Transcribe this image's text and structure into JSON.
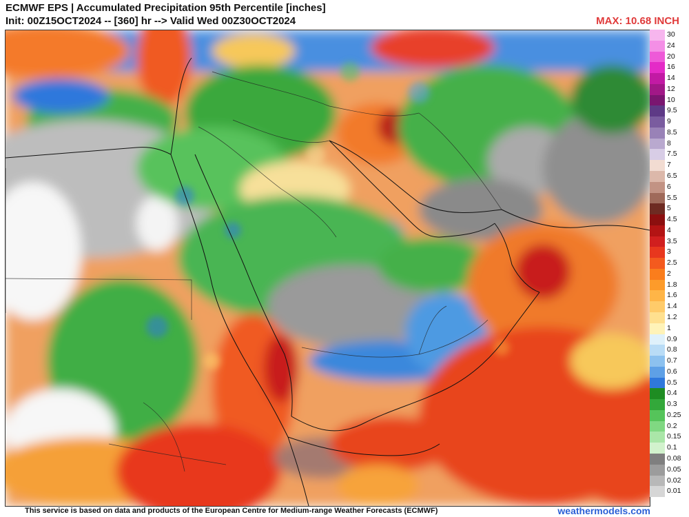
{
  "header": {
    "title_line1": "ECMWF EPS | Accumulated Precipitation 95th Percentile [inches]",
    "title_line2": "Init: 00Z15OCT2024 -- [360] hr --> Valid Wed 00Z30OCT2024",
    "max_label": "MAX: 10.68 INCH"
  },
  "footer": {
    "credit": "This service is based on data and products of the European Centre for Medium-range Weather Forecasts (ECMWF)",
    "brand": "weathermodels.com"
  },
  "legend": [
    {
      "label": "30",
      "color": "#f7b6ee"
    },
    {
      "label": "24",
      "color": "#f48fe6"
    },
    {
      "label": "20",
      "color": "#ee5ad8"
    },
    {
      "label": "16",
      "color": "#e42bc7"
    },
    {
      "label": "14",
      "color": "#c21aa4"
    },
    {
      "label": "12",
      "color": "#a11887"
    },
    {
      "label": "10",
      "color": "#7a1670"
    },
    {
      "label": "9.5",
      "color": "#5e3a86"
    },
    {
      "label": "9",
      "color": "#7a5c9f"
    },
    {
      "label": "8.5",
      "color": "#9982b7"
    },
    {
      "label": "8",
      "color": "#b9a9cf"
    },
    {
      "label": "7.5",
      "color": "#d8cde6"
    },
    {
      "label": "7",
      "color": "#f2dcd2"
    },
    {
      "label": "6.5",
      "color": "#dcb8aa"
    },
    {
      "label": "6",
      "color": "#c29384"
    },
    {
      "label": "5.5",
      "color": "#9f6a5a"
    },
    {
      "label": "5",
      "color": "#6e2b22"
    },
    {
      "label": "4.5",
      "color": "#8c0f0f"
    },
    {
      "label": "4",
      "color": "#b31414"
    },
    {
      "label": "3.5",
      "color": "#d11f1f"
    },
    {
      "label": "3",
      "color": "#e8371e"
    },
    {
      "label": "2.5",
      "color": "#f45a1e"
    },
    {
      "label": "2",
      "color": "#fa7d1c"
    },
    {
      "label": "1.8",
      "color": "#fd9b2a"
    },
    {
      "label": "1.6",
      "color": "#ffb547"
    },
    {
      "label": "1.4",
      "color": "#ffcb6a"
    },
    {
      "label": "1.2",
      "color": "#ffe08f"
    },
    {
      "label": "1",
      "color": "#fff3b8"
    },
    {
      "label": "0.9",
      "color": "#dff1fb"
    },
    {
      "label": "0.8",
      "color": "#b9dcf6"
    },
    {
      "label": "0.7",
      "color": "#8cc1ef"
    },
    {
      "label": "0.6",
      "color": "#5ea0e6"
    },
    {
      "label": "0.5",
      "color": "#2f78dc"
    },
    {
      "label": "0.4",
      "color": "#1e8c22"
    },
    {
      "label": "0.3",
      "color": "#33a83a"
    },
    {
      "label": "0.25",
      "color": "#55c45a"
    },
    {
      "label": "0.2",
      "color": "#80d882"
    },
    {
      "label": "0.15",
      "color": "#aae6a8"
    },
    {
      "label": "0.1",
      "color": "#d2f2cd"
    },
    {
      "label": "0.08",
      "color": "#7f7f7f"
    },
    {
      "label": "0.05",
      "color": "#9c9c9c"
    },
    {
      "label": "0.02",
      "color": "#b8b8b8"
    },
    {
      "label": "0.01",
      "color": "#d6d6d6"
    }
  ]
}
